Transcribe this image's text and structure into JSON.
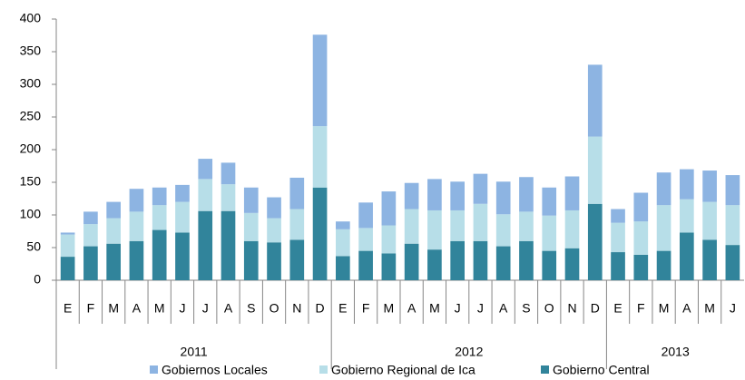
{
  "chart_data": {
    "type": "stacked_bar",
    "groups": [
      {
        "name": "2011",
        "categories": [
          "E",
          "F",
          "M",
          "A",
          "M",
          "J",
          "J",
          "A",
          "S",
          "O",
          "N",
          "D"
        ]
      },
      {
        "name": "2012",
        "categories": [
          "E",
          "F",
          "M",
          "A",
          "M",
          "J",
          "J",
          "A",
          "S",
          "O",
          "N",
          "D"
        ]
      },
      {
        "name": "2013",
        "categories": [
          "E",
          "F",
          "M",
          "A",
          "M",
          "J"
        ]
      }
    ],
    "series": [
      {
        "name": "Gobiernos Locales",
        "color": "#8db4e2",
        "values": [
          3,
          19,
          25,
          35,
          27,
          26,
          31,
          33,
          39,
          32,
          48,
          140,
          12,
          39,
          52,
          40,
          48,
          44,
          46,
          50,
          53,
          43,
          52,
          110,
          21,
          44,
          50,
          46,
          48,
          46
        ]
      },
      {
        "name": "Gobierno Regional de Ica",
        "color": "#b7dee8",
        "values": [
          34,
          34,
          39,
          45,
          38,
          47,
          49,
          41,
          43,
          37,
          47,
          94,
          41,
          35,
          43,
          53,
          60,
          47,
          57,
          49,
          45,
          54,
          58,
          103,
          45,
          51,
          70,
          51,
          58,
          61
        ]
      },
      {
        "name": "Gobierno Central",
        "color": "#31849b",
        "values": [
          36,
          52,
          56,
          60,
          77,
          73,
          106,
          106,
          60,
          58,
          62,
          142,
          37,
          45,
          41,
          56,
          47,
          60,
          60,
          52,
          60,
          45,
          49,
          117,
          43,
          39,
          45,
          73,
          62,
          54
        ]
      }
    ],
    "ylim": [
      0,
      400
    ],
    "yticks": [
      0,
      50,
      100,
      150,
      200,
      250,
      300,
      350,
      400
    ]
  }
}
